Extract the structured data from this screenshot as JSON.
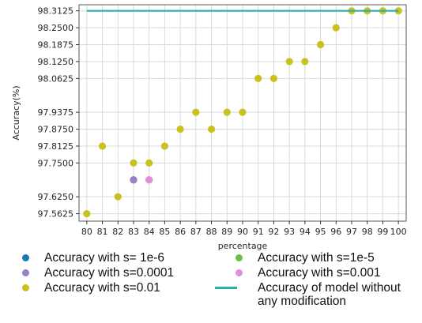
{
  "chart_data": {
    "type": "scatter",
    "title": "",
    "xlabel": "percentage",
    "ylabel": "Accuracy(%)",
    "x_ticks": [
      "80",
      "81",
      "82",
      "83",
      "84",
      "85",
      "86",
      "87",
      "88",
      "89",
      "90",
      "91",
      "92",
      "93",
      "94",
      "95",
      "96",
      "97",
      "98",
      "99",
      "100"
    ],
    "y_ticks": [
      "97.5625",
      "97.6250",
      "97.7500",
      "97.8125",
      "97.8750",
      "97.9375",
      "98.0625",
      "98.1250",
      "98.1875",
      "98.2500",
      "98.3125"
    ],
    "xlim": [
      79.5,
      100.5
    ],
    "ylim": [
      97.535,
      98.335
    ],
    "grid": true,
    "legend_position": "below",
    "series": [
      {
        "name": "Accuracy with s= 1e-6",
        "color": "#1f77b4",
        "marker": "dot",
        "x": [
          83
        ],
        "y": [
          97.6875
        ]
      },
      {
        "name": "Accuracy with s=1e-5",
        "color": "#6abf45",
        "marker": "dot",
        "x": [
          83,
          84
        ],
        "y": [
          97.6875,
          97.6875
        ]
      },
      {
        "name": "Accuracy with s=0.0001",
        "color": "#9b7fc7",
        "marker": "dot",
        "x": [
          83
        ],
        "y": [
          97.6875
        ]
      },
      {
        "name": "Accuracy with s=0.001",
        "color": "#e58ed8",
        "marker": "dot",
        "x": [
          84
        ],
        "y": [
          97.6875
        ]
      },
      {
        "name": "Accuracy with s=0.01",
        "color": "#c8c120",
        "marker": "dot",
        "x": [
          80,
          81,
          82,
          83,
          84,
          85,
          86,
          87,
          88,
          89,
          90,
          91,
          92,
          93,
          94,
          95,
          96,
          97,
          98,
          99,
          100
        ],
        "y": [
          97.5625,
          97.8125,
          97.625,
          97.75,
          97.75,
          97.8125,
          97.875,
          97.9375,
          97.875,
          97.9375,
          97.9375,
          98.0625,
          98.0625,
          98.125,
          98.125,
          98.1875,
          98.25,
          98.3125,
          98.3125,
          98.3125,
          98.3125
        ]
      },
      {
        "name": "Accuracy of model without any modification",
        "color": "#2ab0b0",
        "marker": "line",
        "x": [
          80,
          100
        ],
        "y": [
          98.3125,
          98.3125
        ]
      }
    ]
  },
  "legend": {
    "items": [
      {
        "label": "Accuracy with s= 1e-6",
        "color": "#1f77b4",
        "marker": "dot"
      },
      {
        "label": "Accuracy with s=1e-5",
        "color": "#6abf45",
        "marker": "dot"
      },
      {
        "label": "Accuracy with s=0.0001",
        "color": "#9b7fc7",
        "marker": "dot"
      },
      {
        "label": "Accuracy with s=0.001",
        "color": "#e58ed8",
        "marker": "dot"
      },
      {
        "label": "Accuracy with s=0.01",
        "color": "#c8c120",
        "marker": "dot"
      },
      {
        "label": "Accuracy of model without\nany modification",
        "color": "#2ab0b0",
        "marker": "line"
      }
    ]
  }
}
